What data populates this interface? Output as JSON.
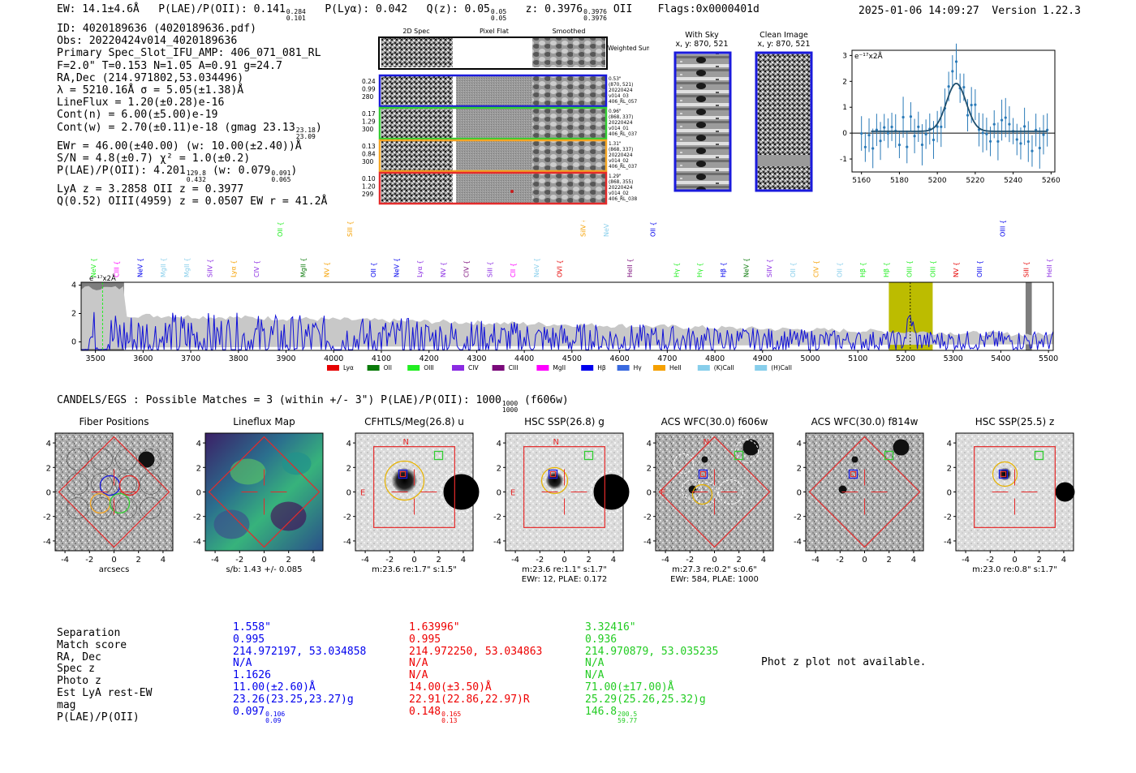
{
  "header": {
    "ew": "EW: 14.1±4.6Å",
    "plae_label": "P(LAE)/P(OII): 0.141",
    "plae_hi": "0.284",
    "plae_lo": "0.101",
    "plya": "P(Lyα): 0.042",
    "qz_label": "Q(z): 0.05",
    "qz_hi": "0.05",
    "qz_lo": "0.05",
    "z_label": "z: 0.3976",
    "z_hi": "0.3976",
    "z_lo": "0.3976",
    "z_line": "OII",
    "flags": "Flags:0x0000401d",
    "timestamp": "2025-01-06 14:09:27",
    "version": "Version 1.22.3"
  },
  "info": {
    "id": "ID: 4020189636 (4020189636.pdf)",
    "obs": "Obs: 20220424v014_4020189636",
    "primary": "Primary Spec_Slot_IFU_AMP: 406_071_081_RL",
    "f_line": "F=2.0\"  T=0.153  N=1.05  A=0.91  g=24.7",
    "radec": "RA,Dec (214.971802,53.034496)",
    "lambda": "λ = 5210.16Å  σ = 5.05(±1.38)Å",
    "lineflux": "LineFlux = 1.20(±0.28)e-16",
    "cont_n": "Cont(n) = 6.00(±5.00)e-19",
    "cont_w": "Cont(w) = 2.70(±0.11)e-18 (gmag 23.13",
    "gmag_hi": "23.18",
    "gmag_lo": "23.09",
    "ewr": "EWr = 46.00(±40.00) (w: 10.00(±2.40))Å",
    "sn": "S/N = 4.8(±0.7)  χ² = 1.0(±0.2)",
    "plae": "P(LAE)/P(OII): 4.201",
    "plae_hi": "129.8",
    "plae_lo": "0.432",
    "plae_w": "(w: 0.079",
    "plae_w_hi": "0.091",
    "plae_w_lo": "0.065",
    "lya_z": "LyA z = 3.2858  OII z = 0.3977",
    "q_line": "Q(0.52) OIII(4959) z = 0.0507  EW r = 41.2Å"
  },
  "cutout_panel": {
    "col_labels": [
      "2D Spec",
      "Pixel Flat",
      "Smoothed"
    ],
    "weighted_label": "Weighted Sum",
    "rows": [
      {
        "left": [
          "0.24",
          "0.99",
          "280"
        ],
        "right": [
          "0.53\"",
          "(870, 521)",
          "20220424",
          "v014_03",
          "406_RL_057"
        ],
        "color": "#1a1adc"
      },
      {
        "left": [
          "0.17",
          "1.29",
          "300"
        ],
        "right": [
          "0.96\"",
          "(868, 337)",
          "20220424",
          "v014_01",
          "406_RL_037"
        ],
        "color": "#33cc33"
      },
      {
        "left": [
          "0.13",
          "0.84",
          "300"
        ],
        "right": [
          "1.31\"",
          "(868, 337)",
          "20220424",
          "v014_02",
          "406_RL_037"
        ],
        "color": "#f5a623"
      },
      {
        "left": [
          "0.10",
          "1.20",
          "299"
        ],
        "right": [
          "1.29\"",
          "(868, 355)",
          "20220424",
          "v014_02",
          "406_RL_038"
        ],
        "color": "#e52b2b"
      }
    ]
  },
  "sky_panel": {
    "with_sky": "With Sky",
    "with_sky_xy": "x, y: 870, 521",
    "clean": "Clean Image",
    "clean_xy": "x, y: 870, 521"
  },
  "zoom_plot": {
    "ylabel": "e⁻¹⁷x2Å",
    "xticks": [
      "5160",
      "5180",
      "5200",
      "5220",
      "5240",
      "5260"
    ],
    "yticks": [
      "3",
      "2",
      "1",
      "0",
      "-1"
    ]
  },
  "spectrum": {
    "ylabel": "e⁻¹⁷x2Å",
    "yticks": [
      "4",
      "2",
      "0"
    ],
    "xticks": [
      "3500",
      "3600",
      "3700",
      "3800",
      "3900",
      "4000",
      "4100",
      "4200",
      "4300",
      "4400",
      "4500",
      "4600",
      "4700",
      "4800",
      "4900",
      "5000",
      "5100",
      "5200",
      "5300",
      "5400",
      "5500"
    ],
    "legend": [
      {
        "label": "Lyα",
        "color": "#e60000"
      },
      {
        "label": "OII",
        "color": "#0a7a0a"
      },
      {
        "label": "OIII",
        "color": "#22ee22"
      },
      {
        "label": "CIV",
        "color": "#8a2be2"
      },
      {
        "label": "CIII",
        "color": "#7a0a7a"
      },
      {
        "label": "MgII",
        "color": "#ff00ff"
      },
      {
        "label": "Hβ",
        "color": "#0000ee"
      },
      {
        "label": "Hγ",
        "color": "#3a6ae0"
      },
      {
        "label": "HeII",
        "color": "#f5a000"
      },
      {
        "label": "(K)CaII",
        "color": "#87ceeb"
      },
      {
        "label": "(H)CaII",
        "color": "#87ceeb"
      }
    ],
    "lines": [
      {
        "label": "NeV",
        "color": "#22ee22",
        "low": true
      },
      {
        "label": "CIII",
        "color": "#ff00ff",
        "low": true
      },
      {
        "label": "NeV",
        "color": "#0000ee",
        "low": true
      },
      {
        "label": "MgII",
        "color": "#87ceeb",
        "low": true
      },
      {
        "label": "MgII",
        "color": "#87ceeb",
        "low": true
      },
      {
        "label": "SiIV",
        "color": "#8a2be2",
        "low": true
      },
      {
        "label": "Lyα",
        "color": "#f5a000",
        "low": true
      },
      {
        "label": "CIV",
        "color": "#8a2be2",
        "low": true
      },
      {
        "label": "OII",
        "color": "#22ee22",
        "low": false
      },
      {
        "label": "MgII",
        "color": "#0a7a0a",
        "low": true
      },
      {
        "label": "NV",
        "color": "#f5a000",
        "low": true
      },
      {
        "label": "SiII",
        "color": "#f5a000",
        "low": false
      },
      {
        "label": "OII",
        "color": "#0000ee",
        "low": true
      },
      {
        "label": "NeV",
        "color": "#0000ee",
        "low": true
      },
      {
        "label": "Lyα",
        "color": "#8a2be2",
        "low": true
      },
      {
        "label": "NV",
        "color": "#8a2be2",
        "low": true
      },
      {
        "label": "CIV",
        "color": "#7a0a7a",
        "low": true
      },
      {
        "label": "SiII",
        "color": "#8a2be2",
        "low": true
      },
      {
        "label": "CII",
        "color": "#ff00ff",
        "low": true
      },
      {
        "label": "NeV",
        "color": "#87ceeb",
        "low": true
      },
      {
        "label": "OVI",
        "color": "#e60000",
        "low": true
      },
      {
        "label": "SiIV",
        "color": "#f5a000",
        "low": false
      },
      {
        "label": "NeV",
        "color": "#87ceeb",
        "low": false
      },
      {
        "label": "HeII",
        "color": "#7a0a7a",
        "low": true
      },
      {
        "label": "OII",
        "color": "#0000ee",
        "low": false
      },
      {
        "label": "Hγ",
        "color": "#22ee22",
        "low": true
      },
      {
        "label": "Hγ",
        "color": "#22ee22",
        "low": true
      },
      {
        "label": "Hβ",
        "color": "#0000ee",
        "low": true
      },
      {
        "label": "NeV",
        "color": "#0a7a0a",
        "low": true
      },
      {
        "label": "SiIV",
        "color": "#8a2be2",
        "low": true
      },
      {
        "label": "OII",
        "color": "#87ceeb",
        "low": true
      },
      {
        "label": "CIV",
        "color": "#f5a000",
        "low": true
      },
      {
        "label": "OII",
        "color": "#87ceeb",
        "low": true
      },
      {
        "label": "Hβ",
        "color": "#22ee22",
        "low": true
      },
      {
        "label": "Hβ",
        "color": "#22ee22",
        "low": true
      },
      {
        "label": "OIII",
        "color": "#22ee22",
        "low": true
      },
      {
        "label": "OIII",
        "color": "#22ee22",
        "low": true
      },
      {
        "label": "NV",
        "color": "#e60000",
        "low": true
      },
      {
        "label": "OIII",
        "color": "#0000ee",
        "low": true
      },
      {
        "label": "OIII",
        "color": "#0000ee",
        "low": false
      },
      {
        "label": "SiII",
        "color": "#e60000",
        "low": true
      },
      {
        "label": "HeII",
        "color": "#8a2be2",
        "low": true
      }
    ]
  },
  "matches": {
    "title": "CANDELS/EGS : Possible Matches = 3 (within +/- 3\")  P(LAE)/P(OII): 1000",
    "title_hi": "1000",
    "title_lo": "1000",
    "title_filter": "(f606w)"
  },
  "stamps": [
    {
      "title": "Fiber Positions",
      "caption": "arcsecs",
      "caption2": ""
    },
    {
      "title": "Lineflux Map",
      "caption": "s/b: 1.43 +/- 0.085",
      "caption2": ""
    },
    {
      "title": "CFHTLS/Meg(26.8) u",
      "caption": "m:23.6  re:1.7\"  s:1.5\"",
      "caption2": ""
    },
    {
      "title": "HSC SSP(26.8) g",
      "caption": "m:23.6  re:1.1\"  s:1.7\"",
      "caption2": "EWr: 12, PLAE: 0.172"
    },
    {
      "title": "ACS WFC(30.0) f606w",
      "caption": "m:27.3  re:0.2\"  s:0.6\"",
      "caption2": "EWr: 584, PLAE: 1000"
    },
    {
      "title": "ACS WFC(30.0) f814w",
      "caption": "",
      "caption2": ""
    },
    {
      "title": "HSC SSP(25.5) z",
      "caption": "m:23.0  re:0.8\"  s:1.7\"",
      "caption2": ""
    }
  ],
  "stamp_axes": {
    "xticks": [
      "-4",
      "-2",
      "0",
      "2",
      "4"
    ],
    "yticks": [
      "4",
      "2",
      "0",
      "-2",
      "-4"
    ],
    "compass_n": "N",
    "compass_e": "E"
  },
  "table": {
    "row_labels": [
      "Separation",
      "Match score",
      "RA, Dec",
      "Spec z",
      "Photo z",
      "Est LyA rest-EW",
      "mag",
      "P(LAE)/P(OII)"
    ],
    "columns": [
      {
        "color": "#0000ee",
        "values": [
          "1.558\"",
          "0.995",
          "214.972197, 53.034858",
          "N/A",
          "1.1626",
          "11.00(±2.60)Å",
          "23.26(23.25,23.27)g"
        ],
        "plae": "0.097",
        "plae_hi": "0.106",
        "plae_lo": "0.09"
      },
      {
        "color": "#ee0000",
        "values": [
          "1.63996\"",
          "0.995",
          "214.972250, 53.034863",
          "N/A",
          "N/A",
          "14.00(±3.50)Å",
          "22.91(22.86,22.97)R"
        ],
        "plae": "0.148",
        "plae_hi": "0.165",
        "plae_lo": "0.13"
      },
      {
        "color": "#22cc22",
        "values": [
          "3.32416\"",
          "0.936",
          "214.970879, 53.035235",
          "N/A",
          "N/A",
          "71.00(±17.00)Å",
          "25.29(25.26,25.32)g"
        ],
        "plae": "146.8",
        "plae_hi": "200.5",
        "plae_lo": "59.77"
      }
    ],
    "phot_z_note": "Phot z plot not available."
  }
}
